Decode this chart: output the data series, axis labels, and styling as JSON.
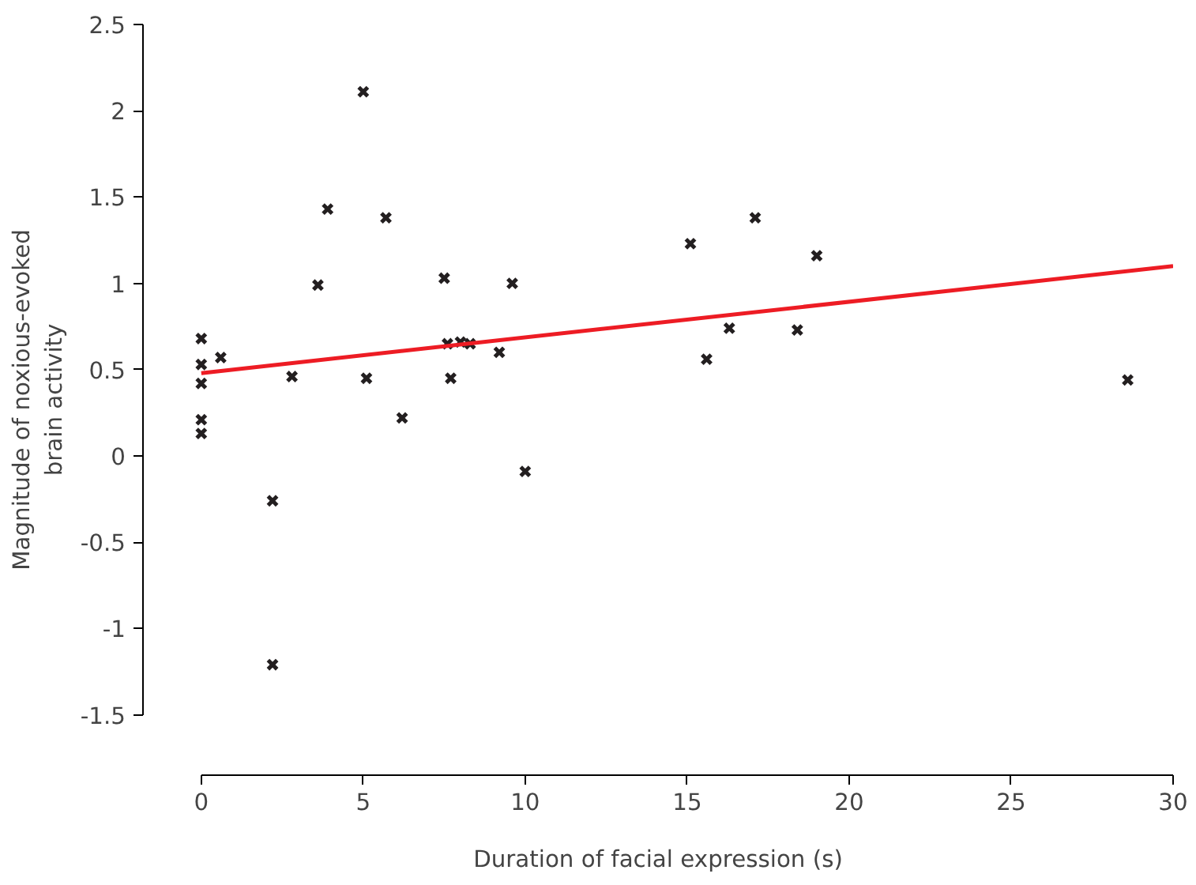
{
  "chart_data": {
    "type": "scatter",
    "xlabel": "Duration of facial expression (s)",
    "ylabel": "Magnitude of noxious-evoked\nbrain activity",
    "xlim": [
      -1.8,
      30
    ],
    "ylim": [
      -1.85,
      2.5
    ],
    "xticks": [
      0,
      5,
      10,
      15,
      20,
      25,
      30
    ],
    "yticks": [
      -1.5,
      -1,
      -0.5,
      0,
      0.5,
      1,
      1.5,
      2,
      2.5
    ],
    "grid": false,
    "series": [
      {
        "marker": "cross",
        "color": "#231f20",
        "x": [
          0,
          0,
          0,
          0,
          0,
          0.6,
          2.2,
          2.2,
          2.8,
          3.6,
          3.9,
          5.0,
          5.1,
          5.7,
          6.2,
          7.5,
          7.6,
          7.7,
          8.0,
          8.3,
          9.2,
          9.6,
          10.0,
          15.1,
          15.6,
          16.3,
          17.1,
          18.4,
          19.0,
          28.6
        ],
        "values": [
          0.68,
          0.53,
          0.42,
          0.21,
          0.13,
          0.57,
          -0.26,
          -1.21,
          0.46,
          0.99,
          1.43,
          2.11,
          0.45,
          1.38,
          0.22,
          1.03,
          0.65,
          0.45,
          0.66,
          0.65,
          0.6,
          1.0,
          -0.09,
          1.23,
          0.56,
          0.74,
          1.38,
          0.73,
          1.16,
          0.44
        ]
      },
      {
        "type": "line",
        "color": "#ed1c24",
        "x": [
          0,
          30
        ],
        "values": [
          0.48,
          1.1
        ]
      }
    ]
  }
}
